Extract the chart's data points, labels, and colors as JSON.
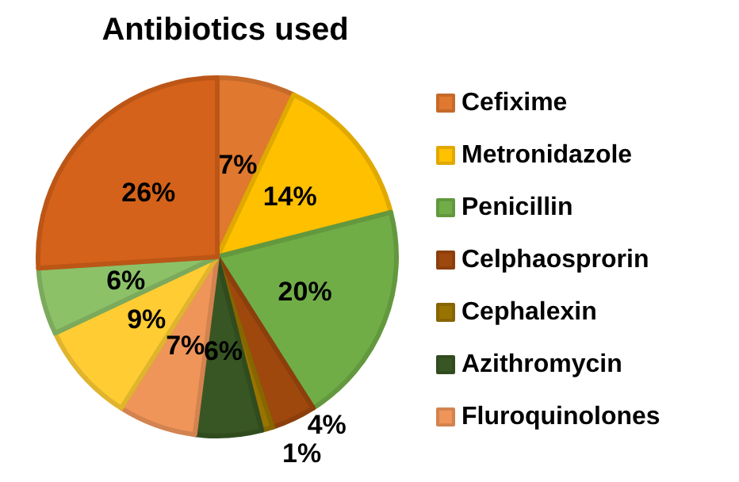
{
  "chart_data": {
    "type": "pie",
    "title": "Antibiotics used",
    "categories": [
      "Cefixime",
      "Metronidazole",
      "Penicillin",
      "Celphaosprorin",
      "Cephalexin",
      "Azithromycin",
      "Fluroquinolones",
      null,
      null,
      null
    ],
    "values": [
      7,
      14,
      20,
      4,
      1,
      6,
      7,
      9,
      6,
      26
    ],
    "value_labels": [
      "7%",
      "14%",
      "20%",
      "4%",
      "1%",
      "6%",
      "7%",
      "9%",
      "6%",
      "26%"
    ],
    "colors": [
      "#e07830",
      "#ffc000",
      "#70ad47",
      "#9e480e",
      "#997300",
      "#375623",
      "#f0955a",
      "#ffcd33",
      "#8cc168",
      "#d5621a"
    ],
    "legend": "right"
  }
}
